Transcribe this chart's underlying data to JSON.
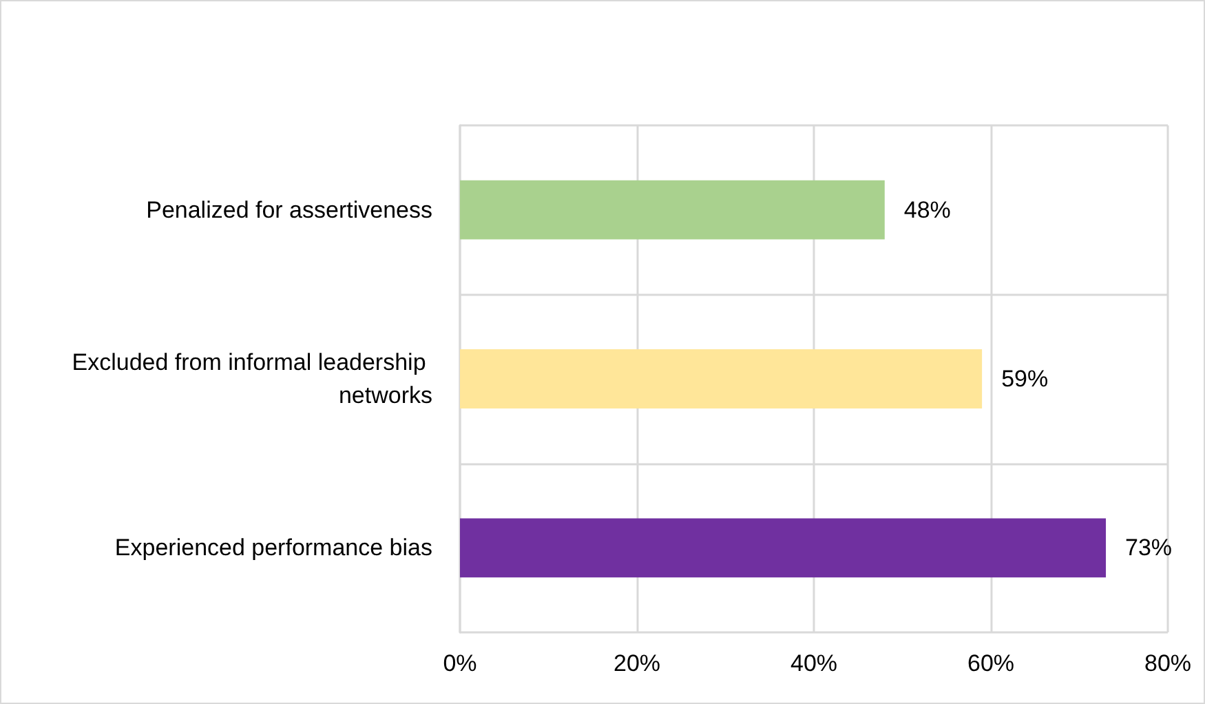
{
  "chart_data": {
    "type": "bar",
    "orientation": "horizontal",
    "categories": [
      "Penalized for assertiveness",
      "Excluded from informal leadership networks",
      "Experienced performance bias"
    ],
    "values": [
      48,
      59,
      73
    ],
    "colors": [
      "#a9d18e",
      "#ffe699",
      "#7030a0"
    ],
    "value_labels": [
      "48%",
      "59%",
      "73%"
    ],
    "xlim": [
      0,
      80
    ],
    "xticks": [
      {
        "value": 0,
        "label": "0%"
      },
      {
        "value": 20,
        "label": "20%"
      },
      {
        "value": 40,
        "label": "40%"
      },
      {
        "value": 60,
        "label": "60%"
      },
      {
        "value": 80,
        "label": "80%"
      }
    ],
    "grid": true
  }
}
